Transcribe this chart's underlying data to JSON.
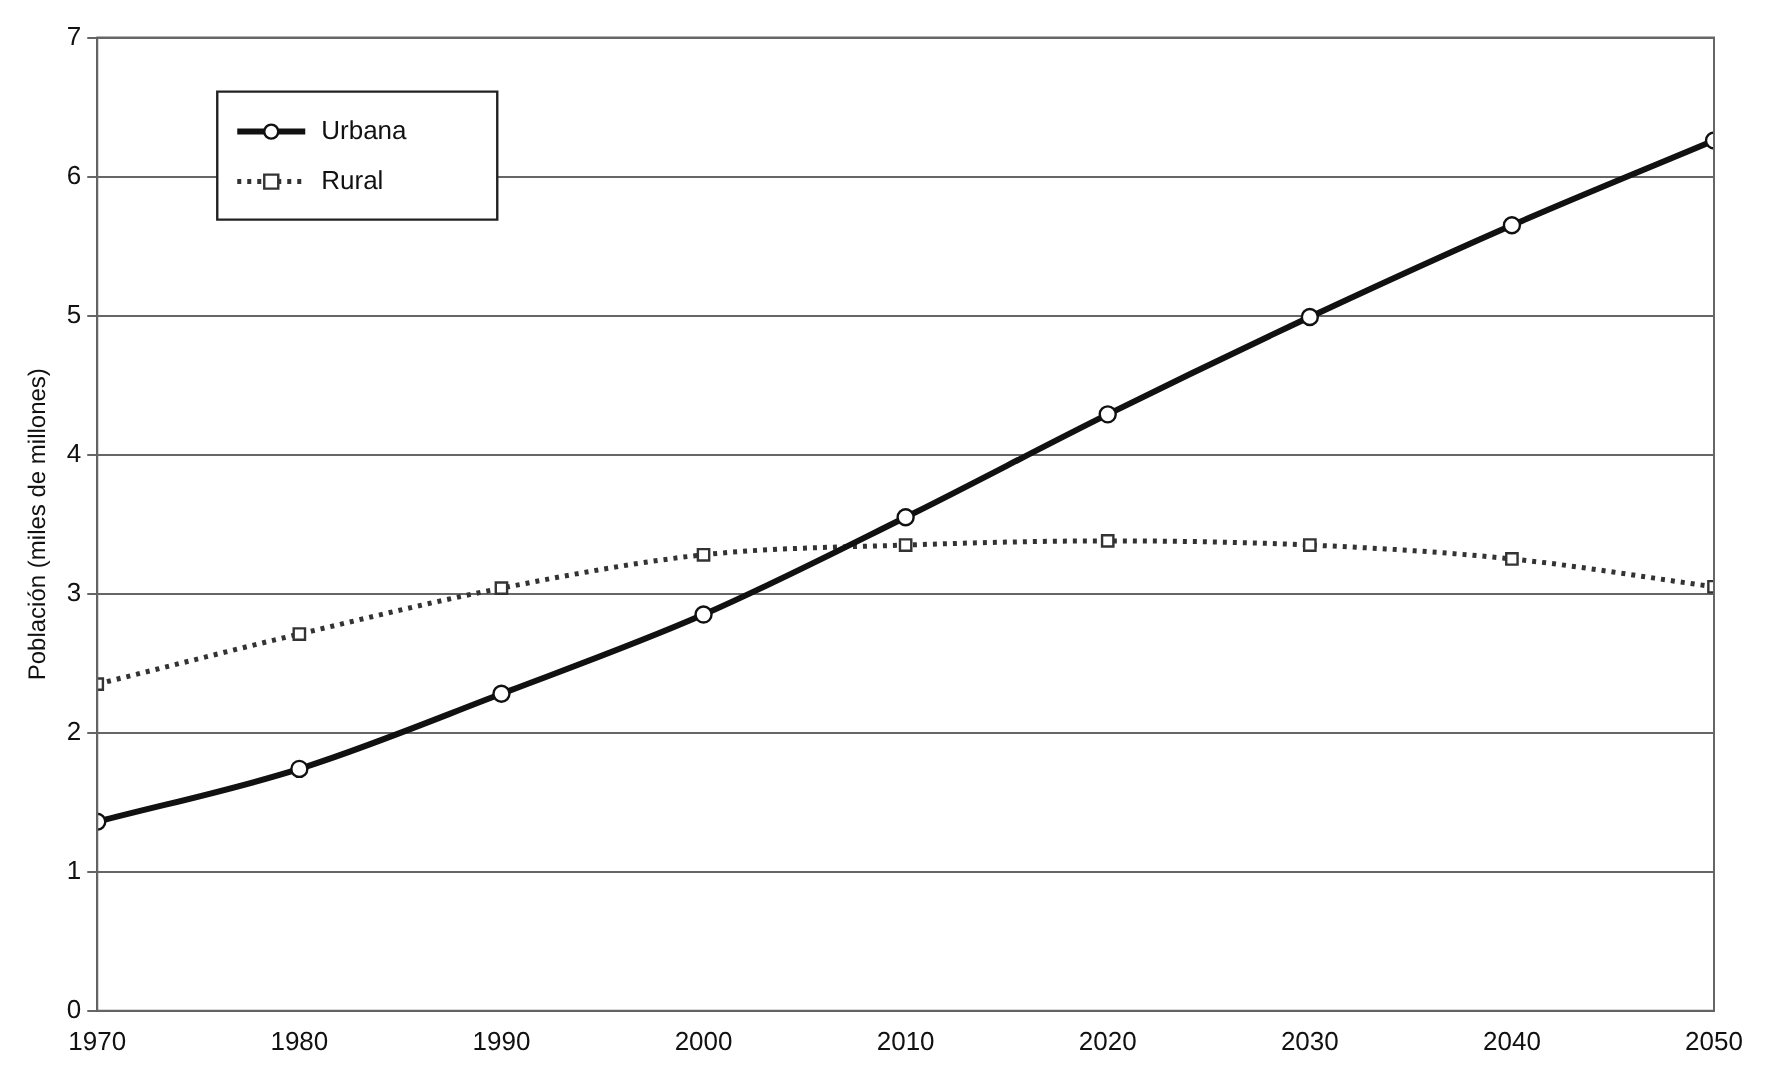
{
  "chart_data": {
    "type": "line",
    "ylabel": "Población (miles de millones)",
    "x": [
      1970,
      1980,
      1990,
      2000,
      2010,
      2020,
      2030,
      2040,
      2050
    ],
    "series": [
      {
        "name": "Urbana",
        "color": "#111111",
        "marker": "circle",
        "line_style": "solid",
        "values": [
          1.36,
          1.74,
          2.28,
          2.85,
          3.55,
          4.29,
          4.99,
          5.65,
          6.26
        ]
      },
      {
        "name": "Rural",
        "color": "#333333",
        "marker": "square",
        "line_style": "dotted",
        "values": [
          2.35,
          2.71,
          3.04,
          3.28,
          3.35,
          3.38,
          3.35,
          3.25,
          3.05
        ]
      }
    ],
    "xlim": [
      1970,
      2050
    ],
    "xticks": [
      1970,
      1980,
      1990,
      2000,
      2010,
      2020,
      2030,
      2040,
      2050
    ],
    "ylim": [
      0,
      7
    ],
    "yticks": [
      0,
      1,
      2,
      3,
      4,
      5,
      6,
      7
    ],
    "grid": "y",
    "legend": "top left"
  }
}
